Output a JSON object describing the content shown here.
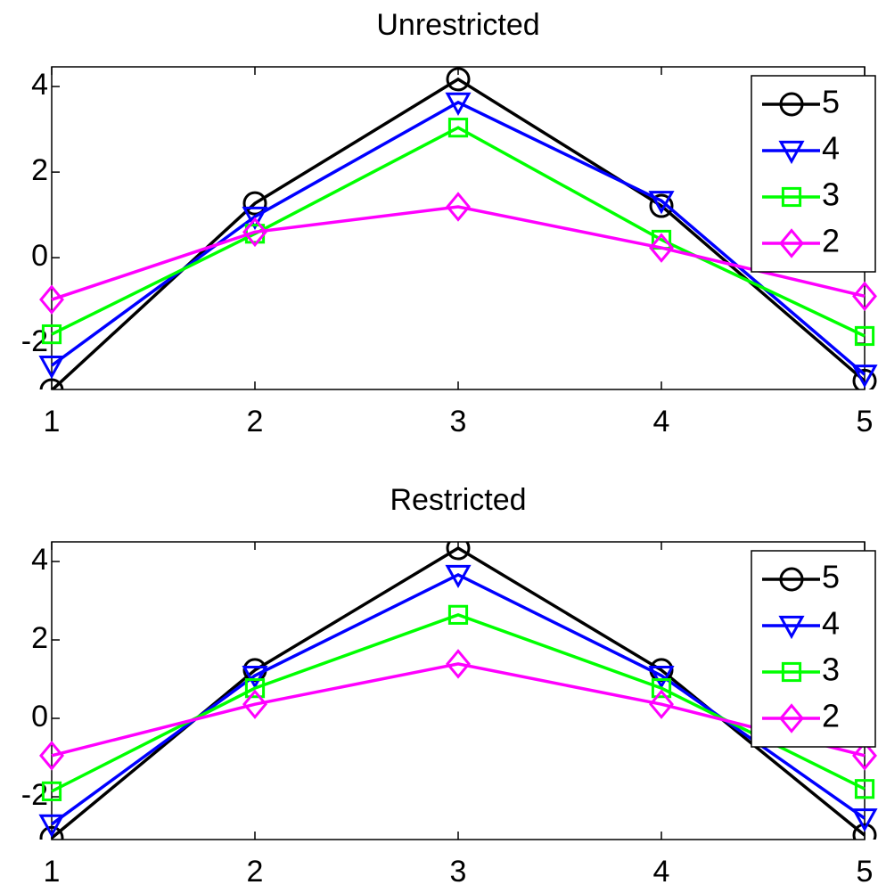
{
  "chart_data": [
    {
      "type": "line",
      "title": "Unrestricted",
      "x": [
        1,
        2,
        3,
        4,
        5
      ],
      "xlim": [
        1,
        5
      ],
      "xticks": [
        1,
        2,
        3,
        4,
        5
      ],
      "ylim": [
        -3.08,
        4.46
      ],
      "yticks": [
        -2,
        0,
        2,
        4
      ],
      "legend": "northeast",
      "series": [
        {
          "name": "5",
          "color": "#000000",
          "marker": "circle",
          "values": [
            -3.1,
            1.27,
            4.17,
            1.21,
            -2.88
          ]
        },
        {
          "name": "4",
          "color": "#0000ff",
          "marker": "triangle-down",
          "values": [
            -2.52,
            0.96,
            3.63,
            1.33,
            -2.73
          ]
        },
        {
          "name": "3",
          "color": "#00ff00",
          "marker": "square",
          "values": [
            -1.79,
            0.56,
            3.04,
            0.42,
            -1.83
          ]
        },
        {
          "name": "2",
          "color": "#ff00ff",
          "marker": "diamond",
          "values": [
            -0.98,
            0.6,
            1.19,
            0.23,
            -0.9
          ]
        }
      ]
    },
    {
      "type": "line",
      "title": "Restricted",
      "x": [
        1,
        2,
        3,
        4,
        5
      ],
      "xlim": [
        1,
        5
      ],
      "xticks": [
        1,
        2,
        3,
        4,
        5
      ],
      "ylim": [
        -3.09,
        4.5
      ],
      "yticks": [
        -2,
        0,
        2,
        4
      ],
      "legend": "northeast",
      "series": [
        {
          "name": "5",
          "color": "#000000",
          "marker": "circle",
          "values": [
            -3.05,
            1.23,
            4.34,
            1.23,
            -2.98
          ]
        },
        {
          "name": "4",
          "color": "#0000ff",
          "marker": "triangle-down",
          "values": [
            -2.7,
            1.09,
            3.66,
            1.09,
            -2.55
          ]
        },
        {
          "name": "3",
          "color": "#00ff00",
          "marker": "square",
          "values": [
            -1.86,
            0.77,
            2.64,
            0.77,
            -1.8
          ]
        },
        {
          "name": "2",
          "color": "#ff00ff",
          "marker": "diamond",
          "values": [
            -0.95,
            0.36,
            1.39,
            0.36,
            -0.95
          ]
        }
      ]
    }
  ]
}
